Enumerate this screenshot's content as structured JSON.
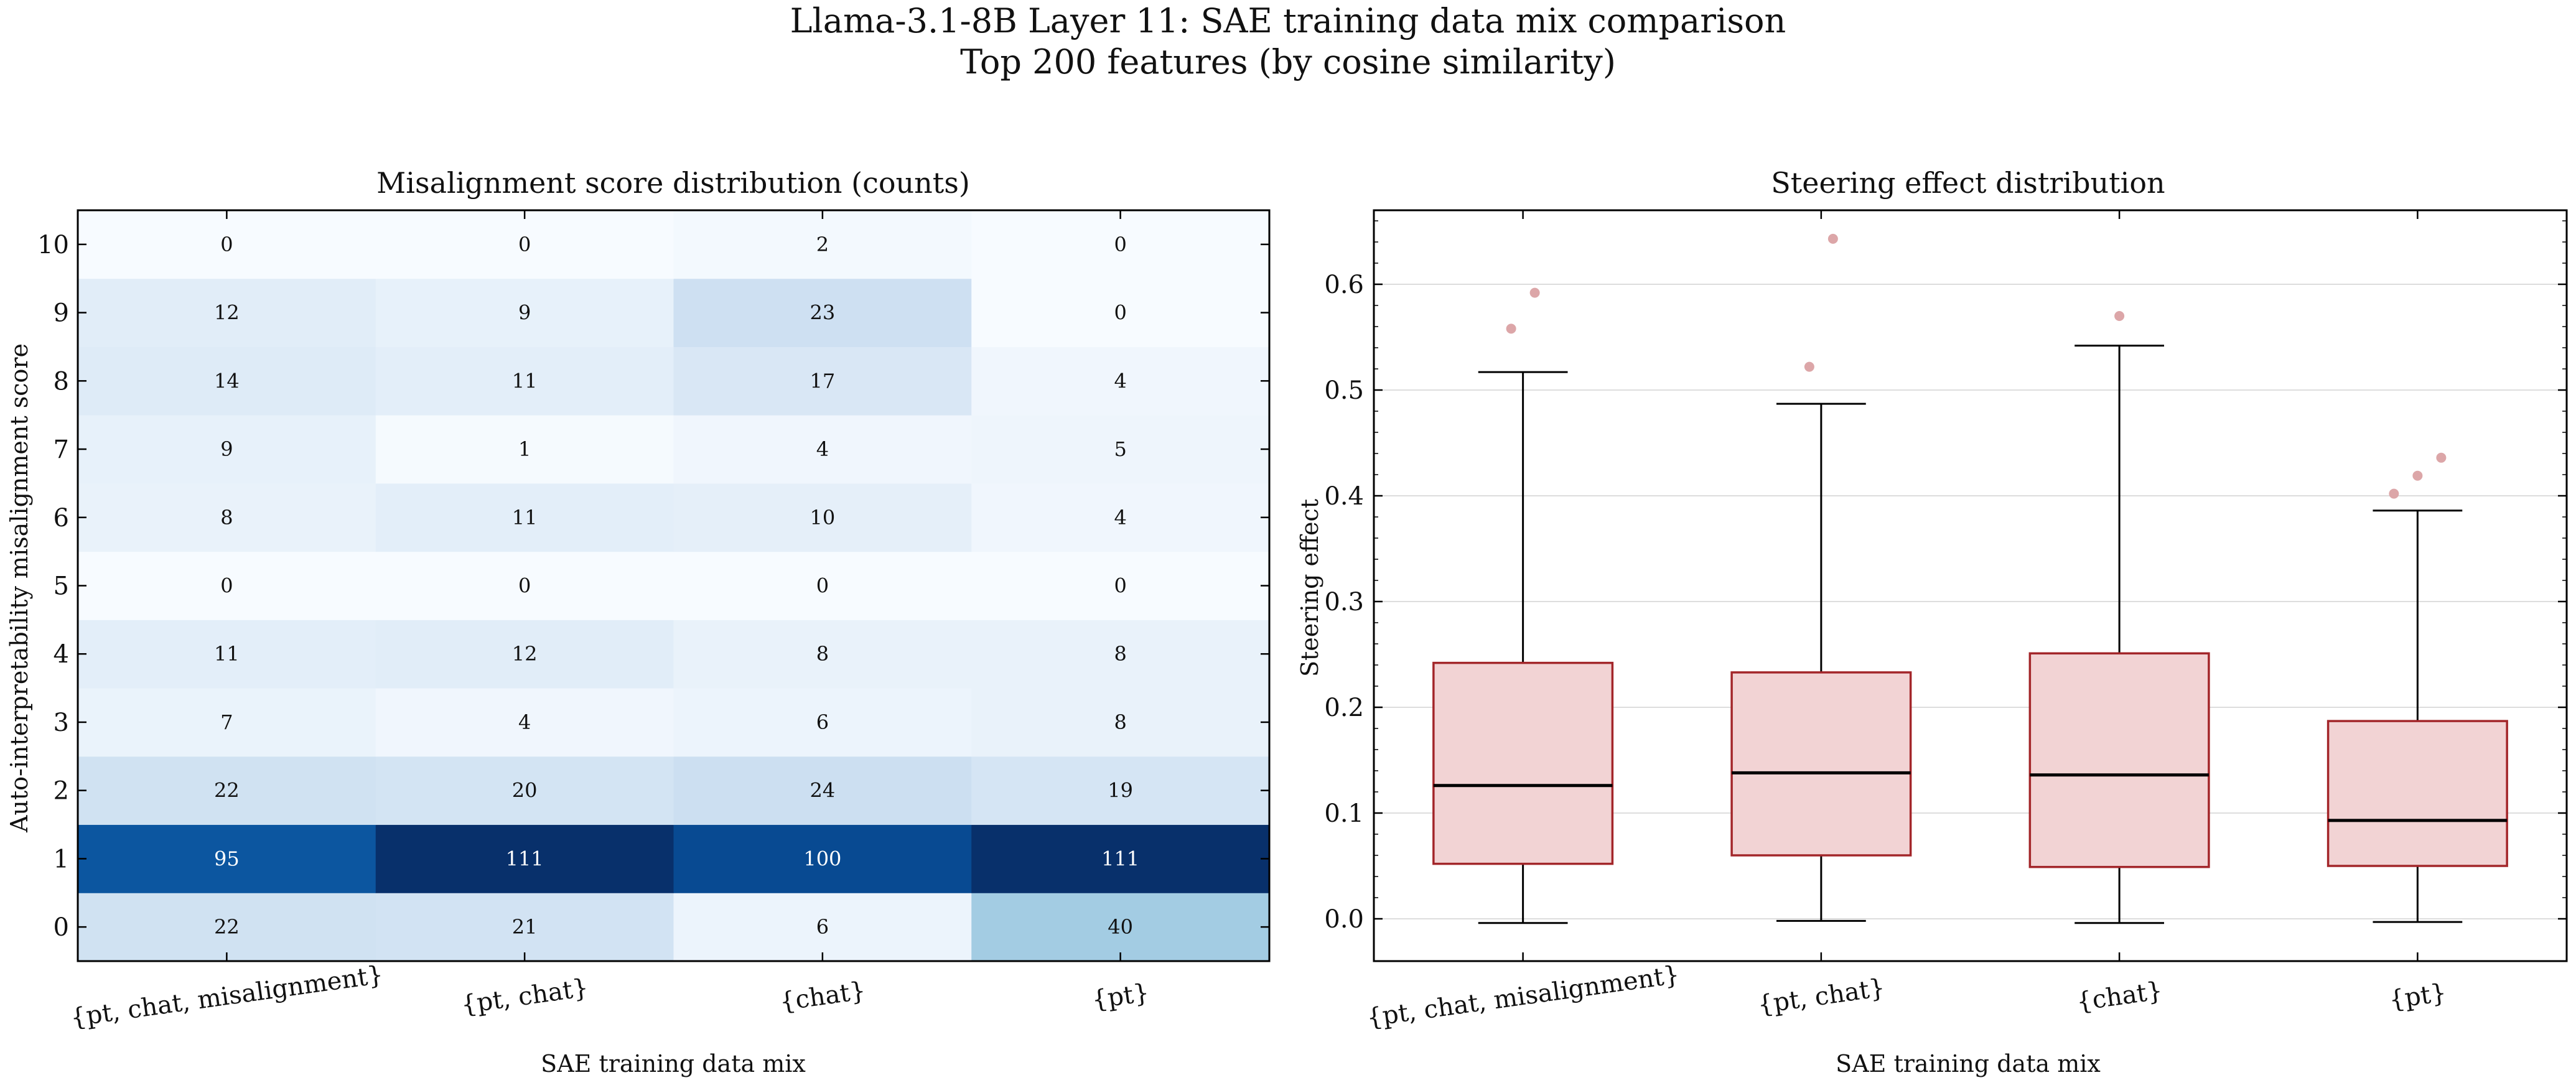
{
  "figure": {
    "title_line1": "Llama-3.1-8B Layer 11: SAE training data mix comparison",
    "title_line2": "Top 200 features (by cosine similarity)"
  },
  "chart_data": [
    {
      "type": "heatmap",
      "title": "Misalignment score distribution (counts)",
      "xlabel": "SAE training data mix",
      "ylabel": "Auto-interpretability misalignment score",
      "x_categories": [
        "{pt, chat, misalignment}",
        "{pt, chat}",
        "{chat}",
        "{pt}"
      ],
      "y_categories": [
        "0",
        "1",
        "2",
        "3",
        "4",
        "5",
        "6",
        "7",
        "8",
        "9",
        "10"
      ],
      "colormap": "Blues",
      "value_range": [
        0,
        111
      ],
      "values": [
        [
          22,
          21,
          6,
          40
        ],
        [
          95,
          111,
          100,
          111
        ],
        [
          22,
          20,
          24,
          19
        ],
        [
          7,
          4,
          6,
          8
        ],
        [
          11,
          12,
          8,
          8
        ],
        [
          0,
          0,
          0,
          0
        ],
        [
          8,
          11,
          10,
          4
        ],
        [
          9,
          1,
          4,
          5
        ],
        [
          14,
          11,
          17,
          4
        ],
        [
          12,
          9,
          23,
          0
        ],
        [
          0,
          0,
          2,
          0
        ]
      ]
    },
    {
      "type": "box",
      "title": "Steering effect distribution",
      "xlabel": "SAE training data mix",
      "ylabel": "Steering effect",
      "ylim": [
        -0.04,
        0.67
      ],
      "yticks": [
        "0.0",
        "0.1",
        "0.2",
        "0.3",
        "0.4",
        "0.5",
        "0.6"
      ],
      "grid": "horizontal",
      "box_color": "#f2d3d4",
      "edge_color": "#a3262a",
      "outlier_color": "#dca6a8",
      "categories": [
        "{pt, chat, misalignment}",
        "{pt, chat}",
        "{chat}",
        "{pt}"
      ],
      "series": [
        {
          "whisker_low": -0.004,
          "q1": 0.052,
          "median": 0.126,
          "q3": 0.242,
          "whisker_high": 0.517,
          "outliers": [
            0.558,
            0.592
          ]
        },
        {
          "whisker_low": -0.002,
          "q1": 0.06,
          "median": 0.138,
          "q3": 0.233,
          "whisker_high": 0.487,
          "outliers": [
            0.522,
            0.643
          ]
        },
        {
          "whisker_low": -0.004,
          "q1": 0.049,
          "median": 0.136,
          "q3": 0.251,
          "whisker_high": 0.542,
          "outliers": [
            0.57
          ]
        },
        {
          "whisker_low": -0.003,
          "q1": 0.05,
          "median": 0.093,
          "q3": 0.187,
          "whisker_high": 0.386,
          "outliers": [
            0.402,
            0.419,
            0.436
          ]
        }
      ]
    }
  ]
}
